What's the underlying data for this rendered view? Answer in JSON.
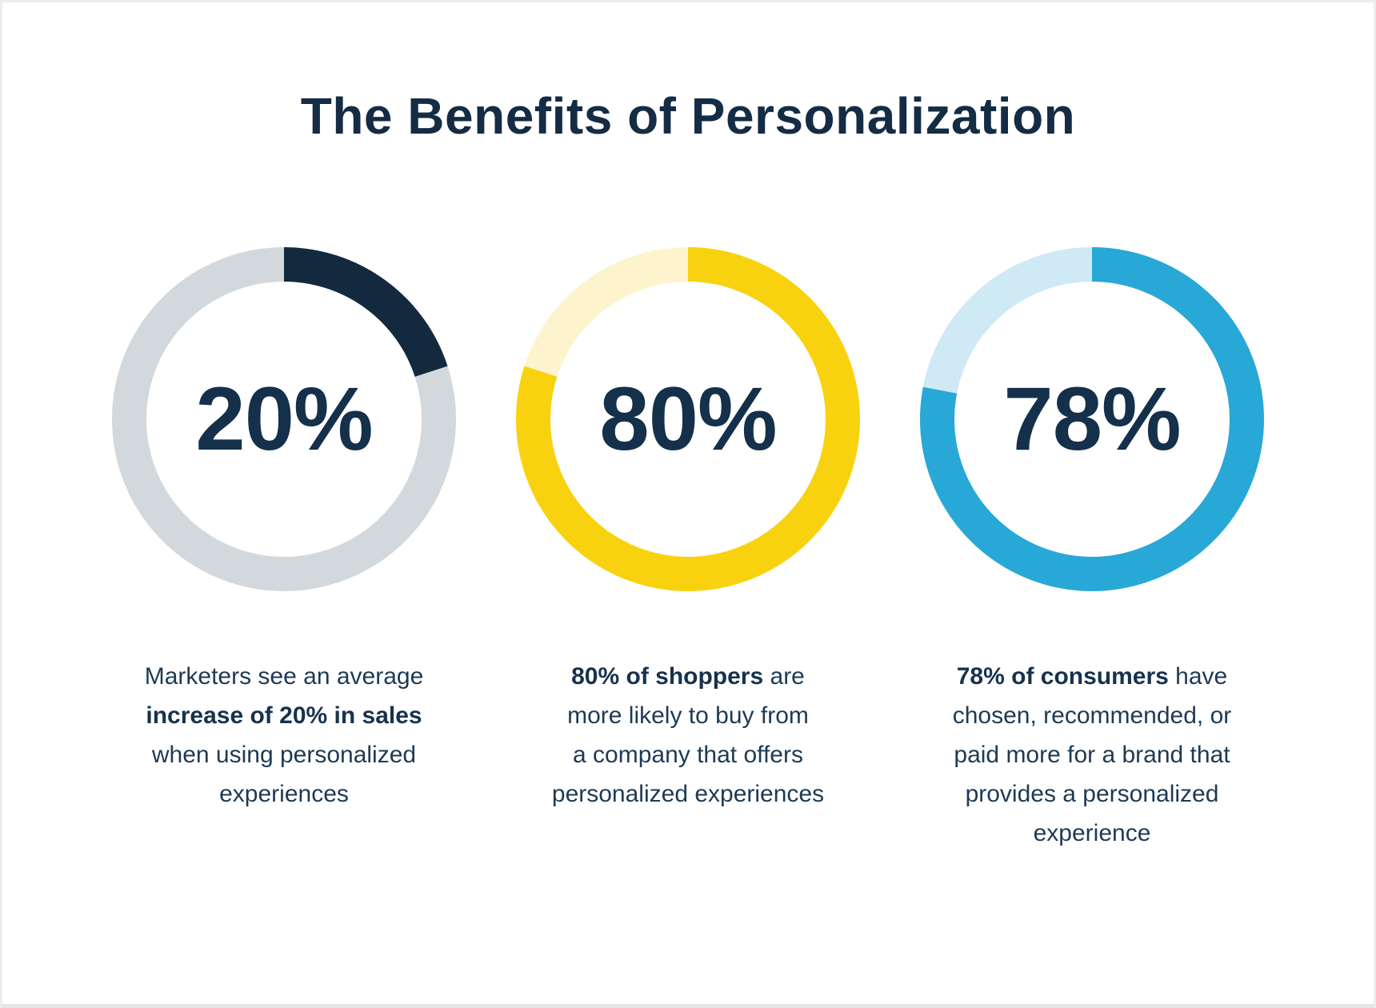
{
  "title": "The Benefits of Personalization",
  "colors": {
    "navy_title": "#142c44",
    "navy_arc": "#132a3e",
    "body_text": "#1e3a54",
    "gray_track": "#d3d8dd",
    "yellow": "#f8d20e",
    "pale_yellow": "#fdf3cd",
    "blue": "#28a8d6",
    "light_blue": "#cfe9f5",
    "card_background": "#ffffff",
    "card_border": "#eaecee"
  },
  "stats": [
    {
      "value": 20,
      "value_label": "20%",
      "fill_color": "#132a3e",
      "track_color": "#d3d8dd",
      "segments": [
        {
          "t": "Marketers see an average\n",
          "b": 0
        },
        {
          "t": "increase of 20% in sales",
          "b": 1
        },
        {
          "t": "\nwhen using personalized\nexperiences",
          "b": 0
        }
      ]
    },
    {
      "value": 80,
      "value_label": "80%",
      "fill_color": "#f8d20e",
      "track_color": "#fdf3cd",
      "segments": [
        {
          "t": "80% of shoppers",
          "b": 1
        },
        {
          "t": " are\nmore likely to buy from\na company that offers\npersonalized experiences",
          "b": 0
        }
      ]
    },
    {
      "value": 78,
      "value_label": "78%",
      "fill_color": "#28a8d6",
      "track_color": "#cfe9f5",
      "segments": [
        {
          "t": "78% of consumers",
          "b": 1
        },
        {
          "t": " have\nchosen, recommended, or\npaid more for a brand that\nprovides a personalized\nexperience",
          "b": 0
        }
      ]
    }
  ],
  "chart_data": [
    {
      "type": "pie",
      "donut": true,
      "center_label": "20%",
      "title": "Marketers see an average increase of 20% in sales when using personalized experiences",
      "categories": [
        "Increase of 20% in sales",
        "Remainder"
      ],
      "values": [
        20,
        80
      ],
      "colors": [
        "#132a3e",
        "#d3d8dd"
      ],
      "start": "top",
      "direction": "clockwise",
      "legend": false
    },
    {
      "type": "pie",
      "donut": true,
      "center_label": "80%",
      "title": "80% of shoppers are more likely to buy from a company that offers personalized experiences",
      "categories": [
        "80% of shoppers",
        "Remainder"
      ],
      "values": [
        80,
        20
      ],
      "colors": [
        "#f8d20e",
        "#fdf3cd"
      ],
      "start": "top",
      "direction": "clockwise",
      "legend": false
    },
    {
      "type": "pie",
      "donut": true,
      "center_label": "78%",
      "title": "78% of consumers have chosen, recommended, or paid more for a brand that provides a personalized experience",
      "categories": [
        "78% of consumers",
        "Remainder"
      ],
      "values": [
        78,
        22
      ],
      "colors": [
        "#28a8d6",
        "#cfe9f5"
      ],
      "start": "top",
      "direction": "clockwise",
      "legend": false
    }
  ]
}
